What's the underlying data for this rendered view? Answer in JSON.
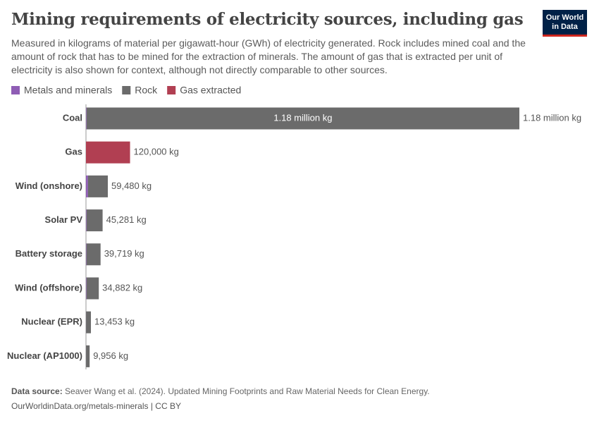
{
  "chart_data": {
    "type": "stacked-bar-horizontal",
    "title": "Mining requirements of electricity sources, including gas",
    "subtitle": "Measured in kilograms of material per gigawatt-hour (GWh) of electricity generated. Rock includes mined coal and the amount of rock that has to be mined for the extraction of minerals. The amount of gas that is extracted per unit of electricity is also shown for context, although not directly comparable to other sources.",
    "logo": [
      "Our World",
      "in Data"
    ],
    "categories": [
      "Coal",
      "Gas",
      "Wind (onshore)",
      "Solar PV",
      "Battery storage",
      "Wind (offshore)",
      "Nuclear (EPR)",
      "Nuclear (AP1000)"
    ],
    "series": [
      {
        "name": "Metals and minerals",
        "color": "#8f5db5",
        "values": [
          1500,
          0,
          5500,
          1500,
          1200,
          1300,
          300,
          250
        ]
      },
      {
        "name": "Rock",
        "color": "#6b6b6b",
        "values": [
          1178500,
          0,
          53980,
          43781,
          38519,
          33582,
          13153,
          9706
        ],
        "value_labels": [
          "1.18 million kg",
          null,
          null,
          null,
          null,
          null,
          null,
          null
        ]
      },
      {
        "name": "Gas extracted",
        "color": "#b13f52",
        "values": [
          0,
          120000,
          0,
          0,
          0,
          0,
          0,
          0
        ]
      }
    ],
    "totals": [
      1180000,
      120000,
      59480,
      45281,
      39719,
      34882,
      13453,
      9956
    ],
    "total_labels": [
      "1.18 million kg",
      "120,000 kg",
      "59,480 kg",
      "45,281 kg",
      "39,719 kg",
      "34,882 kg",
      "13,453 kg",
      "9,956 kg"
    ],
    "xlim": [
      0,
      1180000
    ],
    "source_label": "Data source:",
    "source_text": "Seaver Wang et al. (2024). Updated Mining Footprints and Raw Material Needs for Clean Energy.",
    "footer": "OurWorldinData.org/metals-minerals | CC BY"
  }
}
